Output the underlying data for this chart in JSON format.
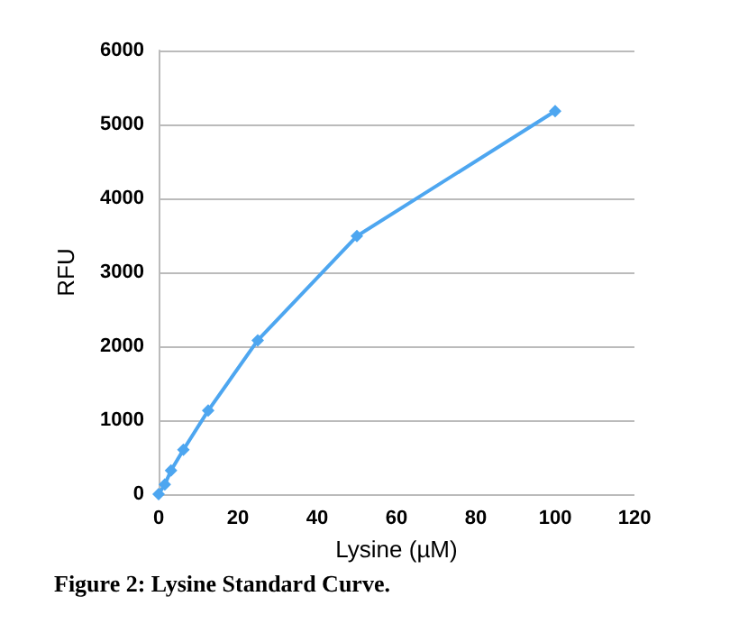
{
  "chart_data": {
    "type": "line",
    "xlabel": "Lysine (µM)",
    "ylabel": "RFU",
    "x": [
      0,
      1.5625,
      3.125,
      6.25,
      12.5,
      25,
      50,
      100
    ],
    "series": [
      {
        "color": "#4da6f0",
        "values": [
          0,
          130,
          320,
          600,
          1130,
          2080,
          3490,
          5180
        ]
      }
    ],
    "xlim": [
      0,
      120
    ],
    "xticks": [
      0,
      20,
      40,
      60,
      80,
      100,
      120
    ],
    "ylim": [
      0,
      6000
    ],
    "yticks": [
      0,
      1000,
      2000,
      3000,
      4000,
      5000,
      6000
    ],
    "grid": "y",
    "marker": "diamond",
    "line_style": "solid",
    "annotations": [
      "Figure 2: Lysine Standard Curve."
    ]
  }
}
